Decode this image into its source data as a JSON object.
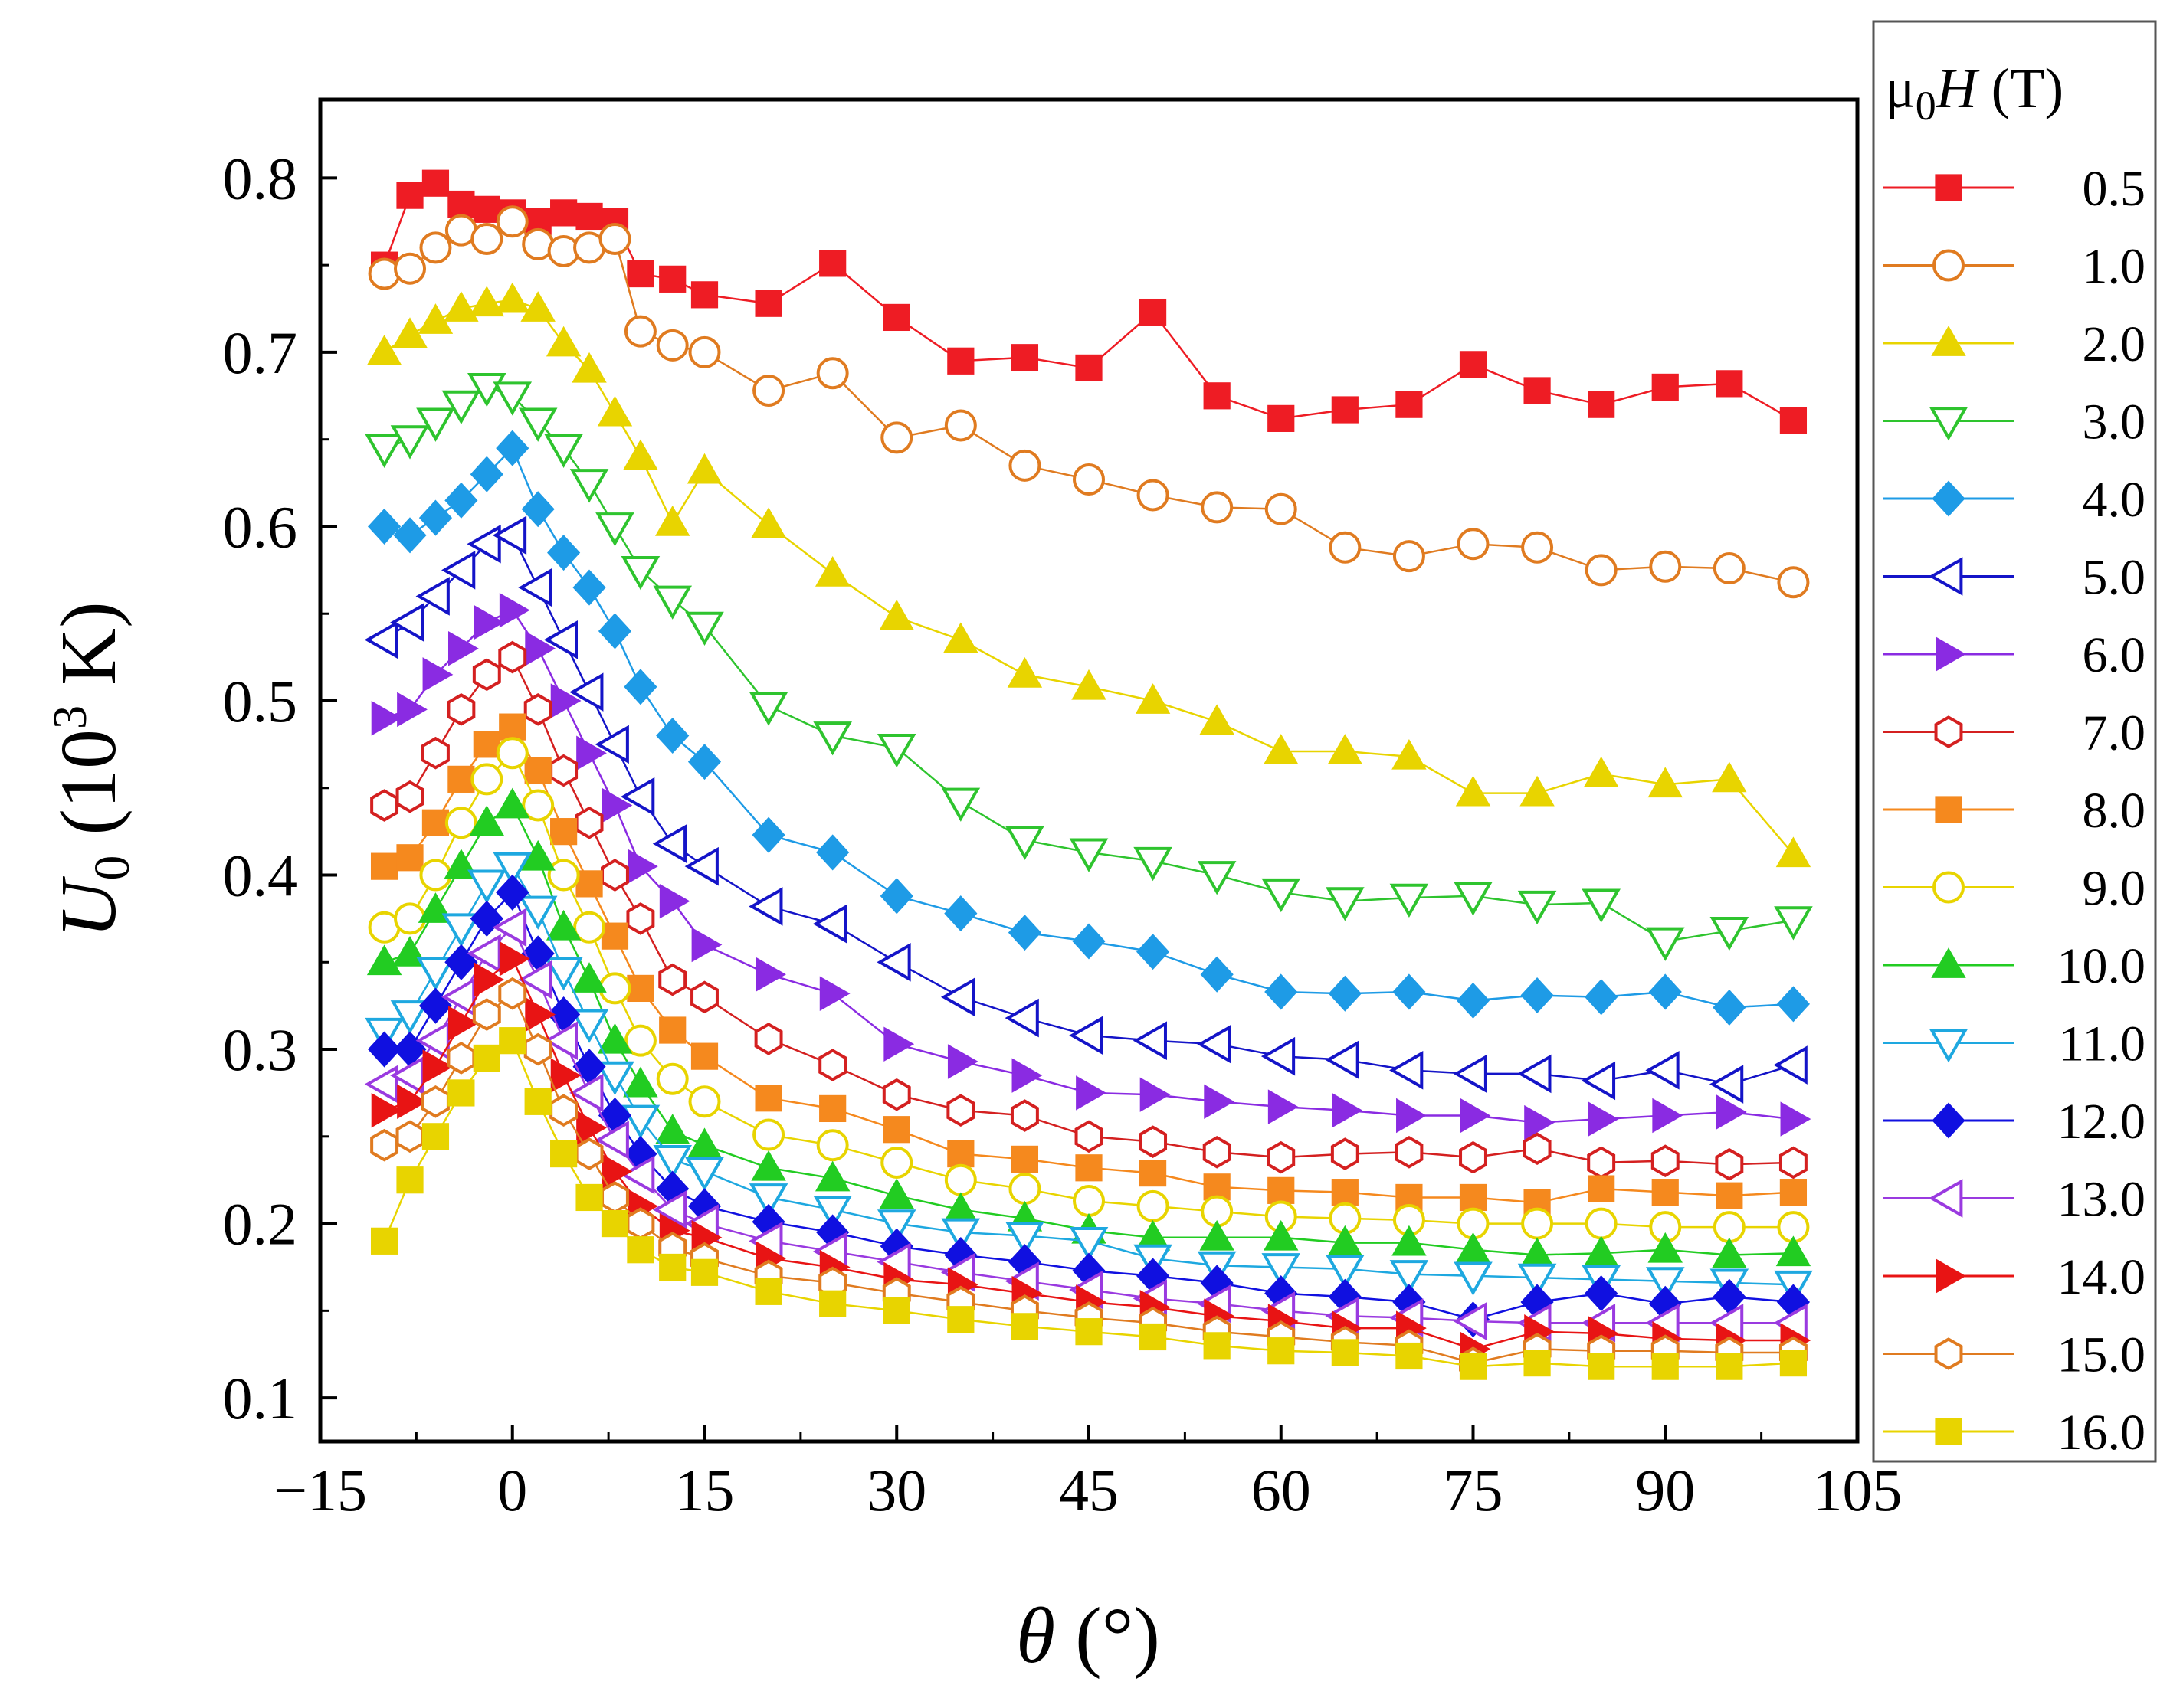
{
  "chart_data": {
    "type": "line",
    "title": "",
    "xlabel": {
      "symbol": "θ",
      "unit": " (°)"
    },
    "ylabel": {
      "symbol": "U",
      "subscript": "0",
      "unit_prefix": " (10",
      "unit_exp": "3",
      "unit_suffix": " K)"
    },
    "xlim": [
      -15,
      105
    ],
    "ylim": [
      0.075,
      0.845
    ],
    "xticks": [
      -15,
      0,
      15,
      30,
      45,
      60,
      75,
      90,
      105
    ],
    "xtick_labels": [
      "−15",
      "0",
      "15",
      "30",
      "45",
      "60",
      "75",
      "90",
      "105"
    ],
    "yticks": [
      0.1,
      0.2,
      0.3,
      0.4,
      0.5,
      0.6,
      0.7,
      0.8
    ],
    "ytick_labels": [
      "0.1",
      "0.2",
      "0.3",
      "0.4",
      "0.5",
      "0.6",
      "0.7",
      "0.8"
    ],
    "grid": false,
    "legend": {
      "title_symbol": "μ",
      "title_sub": "0",
      "title_var": "H",
      "title_unit": " (T)",
      "position": "right-outside"
    },
    "x": [
      -10,
      -8,
      -6,
      -4,
      -2,
      0,
      2,
      4,
      6,
      8,
      10,
      12.5,
      15,
      20,
      25,
      30,
      35,
      40,
      45,
      50,
      55,
      60,
      65,
      70,
      75,
      80,
      85,
      90,
      95,
      100
    ],
    "series": [
      {
        "name": "0.5",
        "color": "#ee1c24",
        "marker": "square",
        "filled": true,
        "values": [
          0.75,
          0.79,
          0.797,
          0.785,
          0.782,
          0.78,
          0.775,
          0.78,
          0.778,
          0.775,
          0.745,
          0.742,
          0.733,
          0.728,
          0.751,
          0.72,
          0.695,
          0.697,
          0.691,
          0.723,
          0.675,
          0.662,
          0.667,
          0.67,
          0.693,
          0.678,
          0.67,
          0.68,
          0.682,
          0.661
        ]
      },
      {
        "name": "1.0",
        "color": "#e07b20",
        "marker": "circle",
        "filled": false,
        "values": [
          0.745,
          0.748,
          0.76,
          0.77,
          0.765,
          0.775,
          0.762,
          0.758,
          0.76,
          0.765,
          0.712,
          0.704,
          0.7,
          0.678,
          0.688,
          0.651,
          0.658,
          0.635,
          0.627,
          0.618,
          0.611,
          0.61,
          0.588,
          0.583,
          0.59,
          0.588,
          0.575,
          0.577,
          0.576,
          0.568
        ]
      },
      {
        "name": "2.0",
        "color": "#e8d400",
        "marker": "triangle-up",
        "filled": true,
        "values": [
          0.7,
          0.71,
          0.718,
          0.725,
          0.728,
          0.73,
          0.725,
          0.705,
          0.69,
          0.665,
          0.64,
          0.602,
          0.632,
          0.601,
          0.573,
          0.548,
          0.535,
          0.515,
          0.508,
          0.5,
          0.488,
          0.471,
          0.471,
          0.468,
          0.447,
          0.447,
          0.458,
          0.452,
          0.455,
          0.412
        ]
      },
      {
        "name": "3.0",
        "color": "#2ec42e",
        "marker": "triangle-down",
        "filled": false,
        "values": [
          0.645,
          0.65,
          0.66,
          0.67,
          0.68,
          0.675,
          0.66,
          0.645,
          0.625,
          0.6,
          0.575,
          0.558,
          0.543,
          0.497,
          0.48,
          0.473,
          0.442,
          0.42,
          0.413,
          0.408,
          0.4,
          0.39,
          0.385,
          0.387,
          0.388,
          0.383,
          0.384,
          0.362,
          0.368,
          0.374
        ]
      },
      {
        "name": "4.0",
        "color": "#1e9be6",
        "marker": "diamond",
        "filled": true,
        "values": [
          0.6,
          0.595,
          0.605,
          0.615,
          0.63,
          0.645,
          0.61,
          0.585,
          0.565,
          0.54,
          0.508,
          0.48,
          0.465,
          0.423,
          0.413,
          0.388,
          0.378,
          0.367,
          0.362,
          0.356,
          0.343,
          0.333,
          0.332,
          0.333,
          0.328,
          0.331,
          0.33,
          0.333,
          0.324,
          0.326
        ]
      },
      {
        "name": "5.0",
        "color": "#1414c8",
        "marker": "triangle-left",
        "filled": false,
        "values": [
          0.535,
          0.545,
          0.56,
          0.575,
          0.59,
          0.595,
          0.565,
          0.535,
          0.505,
          0.475,
          0.445,
          0.418,
          0.405,
          0.382,
          0.372,
          0.35,
          0.33,
          0.318,
          0.308,
          0.305,
          0.303,
          0.296,
          0.294,
          0.288,
          0.286,
          0.286,
          0.282,
          0.288,
          0.28,
          0.291
        ]
      },
      {
        "name": "6.0",
        "color": "#8a2be2",
        "marker": "triangle-right",
        "filled": true,
        "values": [
          0.49,
          0.495,
          0.515,
          0.53,
          0.545,
          0.552,
          0.53,
          0.5,
          0.47,
          0.44,
          0.405,
          0.385,
          0.36,
          0.343,
          0.332,
          0.303,
          0.293,
          0.285,
          0.275,
          0.274,
          0.27,
          0.267,
          0.265,
          0.262,
          0.262,
          0.258,
          0.26,
          0.262,
          0.264,
          0.26
        ]
      },
      {
        "name": "7.0",
        "color": "#d42020",
        "marker": "hexagon",
        "filled": false,
        "values": [
          0.44,
          0.445,
          0.47,
          0.495,
          0.515,
          0.525,
          0.495,
          0.46,
          0.43,
          0.4,
          0.375,
          0.34,
          0.33,
          0.306,
          0.291,
          0.274,
          0.265,
          0.262,
          0.25,
          0.247,
          0.241,
          0.238,
          0.24,
          0.241,
          0.238,
          0.243,
          0.235,
          0.236,
          0.234,
          0.235
        ]
      },
      {
        "name": "8.0",
        "color": "#f5891e",
        "marker": "square",
        "filled": true,
        "values": [
          0.405,
          0.41,
          0.43,
          0.455,
          0.475,
          0.485,
          0.46,
          0.425,
          0.395,
          0.365,
          0.335,
          0.311,
          0.296,
          0.272,
          0.266,
          0.254,
          0.24,
          0.237,
          0.232,
          0.229,
          0.221,
          0.219,
          0.218,
          0.215,
          0.215,
          0.212,
          0.22,
          0.218,
          0.216,
          0.218
        ]
      },
      {
        "name": "9.0",
        "color": "#e8d400",
        "marker": "circle",
        "filled": false,
        "values": [
          0.37,
          0.375,
          0.4,
          0.43,
          0.455,
          0.47,
          0.44,
          0.4,
          0.37,
          0.335,
          0.305,
          0.283,
          0.27,
          0.251,
          0.245,
          0.235,
          0.225,
          0.22,
          0.213,
          0.21,
          0.207,
          0.204,
          0.203,
          0.202,
          0.2,
          0.2,
          0.2,
          0.198,
          0.198,
          0.198
        ]
      },
      {
        "name": "10.0",
        "color": "#22cc22",
        "marker": "triangle-up",
        "filled": true,
        "values": [
          0.35,
          0.355,
          0.38,
          0.405,
          0.43,
          0.44,
          0.41,
          0.37,
          0.34,
          0.305,
          0.28,
          0.253,
          0.245,
          0.232,
          0.226,
          0.216,
          0.208,
          0.203,
          0.196,
          0.192,
          0.192,
          0.192,
          0.189,
          0.189,
          0.185,
          0.182,
          0.183,
          0.185,
          0.182,
          0.183
        ]
      },
      {
        "name": "11.0",
        "color": "#1ea8e0",
        "marker": "triangle-down",
        "filled": false,
        "values": [
          0.31,
          0.32,
          0.345,
          0.37,
          0.395,
          0.405,
          0.38,
          0.345,
          0.315,
          0.285,
          0.26,
          0.237,
          0.23,
          0.215,
          0.208,
          0.2,
          0.195,
          0.193,
          0.19,
          0.18,
          0.176,
          0.175,
          0.174,
          0.171,
          0.17,
          0.169,
          0.168,
          0.167,
          0.166,
          0.165
        ]
      },
      {
        "name": "12.0",
        "color": "#1010e0",
        "marker": "diamond",
        "filled": true,
        "values": [
          0.3,
          0.3,
          0.325,
          0.35,
          0.375,
          0.39,
          0.355,
          0.32,
          0.29,
          0.262,
          0.24,
          0.22,
          0.21,
          0.201,
          0.195,
          0.187,
          0.182,
          0.178,
          0.173,
          0.17,
          0.166,
          0.16,
          0.158,
          0.155,
          0.145,
          0.155,
          0.16,
          0.154,
          0.158,
          0.155
        ]
      },
      {
        "name": "13.0",
        "color": "#9a3ae0",
        "marker": "triangle-left",
        "filled": false,
        "values": [
          0.28,
          0.285,
          0.305,
          0.33,
          0.355,
          0.37,
          0.34,
          0.305,
          0.275,
          0.248,
          0.228,
          0.208,
          0.2,
          0.19,
          0.184,
          0.178,
          0.172,
          0.167,
          0.162,
          0.157,
          0.154,
          0.15,
          0.147,
          0.146,
          0.144,
          0.143,
          0.143,
          0.143,
          0.143,
          0.143
        ]
      },
      {
        "name": "14.0",
        "color": "#e81414",
        "marker": "triangle-right",
        "filled": true,
        "values": [
          0.265,
          0.27,
          0.29,
          0.315,
          0.34,
          0.352,
          0.32,
          0.285,
          0.255,
          0.23,
          0.21,
          0.196,
          0.192,
          0.18,
          0.175,
          0.168,
          0.165,
          0.16,
          0.155,
          0.152,
          0.147,
          0.144,
          0.14,
          0.14,
          0.128,
          0.138,
          0.137,
          0.134,
          0.133,
          0.133
        ]
      },
      {
        "name": "15.0",
        "color": "#e07b20",
        "marker": "hexagon",
        "filled": false,
        "values": [
          0.245,
          0.25,
          0.27,
          0.295,
          0.32,
          0.332,
          0.3,
          0.265,
          0.24,
          0.215,
          0.2,
          0.186,
          0.18,
          0.17,
          0.166,
          0.16,
          0.155,
          0.15,
          0.146,
          0.143,
          0.138,
          0.135,
          0.132,
          0.13,
          0.12,
          0.128,
          0.127,
          0.127,
          0.126,
          0.126
        ]
      },
      {
        "name": "16.0",
        "color": "#e8d400",
        "marker": "square",
        "filled": true,
        "values": [
          0.19,
          0.225,
          0.25,
          0.275,
          0.295,
          0.305,
          0.27,
          0.24,
          0.215,
          0.2,
          0.185,
          0.175,
          0.172,
          0.161,
          0.154,
          0.15,
          0.145,
          0.141,
          0.138,
          0.135,
          0.13,
          0.127,
          0.126,
          0.124,
          0.118,
          0.12,
          0.118,
          0.118,
          0.118,
          0.12
        ]
      }
    ]
  }
}
